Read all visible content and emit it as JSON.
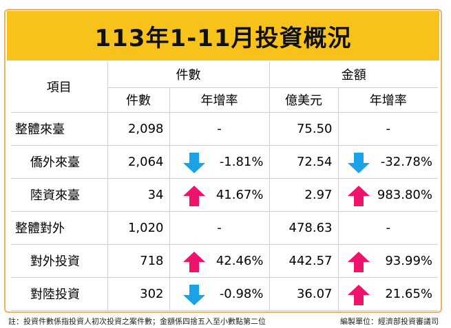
{
  "title": "113年1-11月投資概況",
  "header": {
    "item": "項目",
    "group_count": "件數",
    "group_amount": "金額",
    "sub_count": "件數",
    "sub_count_growth": "年增率",
    "sub_amount": "億美元",
    "sub_amount_growth": "年增率"
  },
  "rows": [
    {
      "label": "整體來臺",
      "count": "2,098",
      "count_growth": "-",
      "amount": "75.50",
      "amount_growth": "-"
    },
    {
      "label": "僑外來臺",
      "count": "2,064",
      "count_growth": "-1.81%",
      "count_dir": "down",
      "amount": "72.54",
      "amount_growth": "-32.78%",
      "amount_dir": "down"
    },
    {
      "label": "陸資來臺",
      "count": "34",
      "count_growth": "41.67%",
      "count_dir": "up",
      "amount": "2.97",
      "amount_growth": "983.80%",
      "amount_dir": "up"
    },
    {
      "label": "整體對外",
      "count": "1,020",
      "count_growth": "-",
      "amount": "478.63",
      "amount_growth": "-"
    },
    {
      "label": "對外投資",
      "count": "718",
      "count_growth": "42.46%",
      "count_dir": "up",
      "amount": "442.57",
      "amount_growth": "93.99%",
      "amount_dir": "up"
    },
    {
      "label": "對陸投資",
      "count": "302",
      "count_growth": "-0.98%",
      "count_dir": "down",
      "amount": "36.07",
      "amount_growth": "21.65%",
      "amount_dir": "up"
    }
  ],
  "colors": {
    "title_bg": "#f7c21a",
    "up_arrow": "#f0136b",
    "down_arrow": "#1aa3e8",
    "frame": "#f0b060"
  },
  "footnote": "註：投資件數係指投資人初次投資之案件數；金額係四捨五入至小數點第二位",
  "compiler": "編製單位：經濟部投資審議司"
}
